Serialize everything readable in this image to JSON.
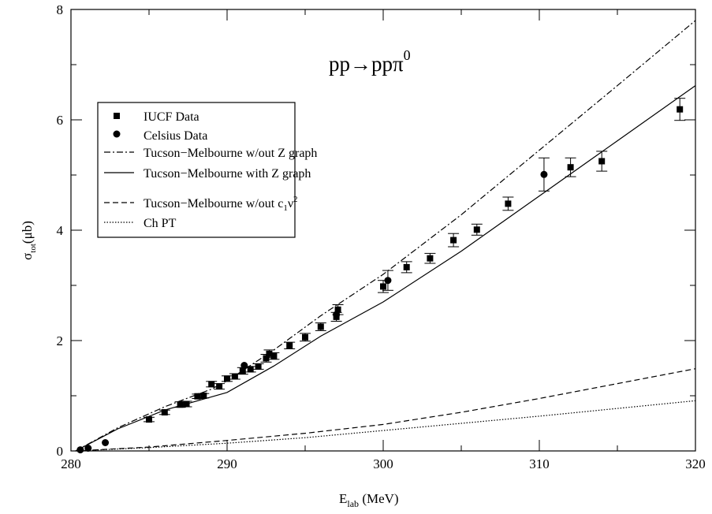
{
  "chart_data": {
    "type": "scatter",
    "title": "pp→ppπ",
    "title_superscript": "0",
    "xlabel_main": "E",
    "xlabel_sub": "lab",
    "xlabel_rest": " (MeV)",
    "ylabel_main": "σ",
    "ylabel_sub": "tot",
    "ylabel_rest": "(μb)",
    "xlim": [
      280,
      320
    ],
    "ylim": [
      0,
      8
    ],
    "x_ticks": [
      "280",
      "290",
      "300",
      "310",
      "320"
    ],
    "y_ticks": [
      "0",
      "2",
      "4",
      "6",
      "8"
    ],
    "grid": false,
    "legend_position": "upper-left",
    "legend": [
      {
        "label": "IUCF Data",
        "marker": "square"
      },
      {
        "label": "Celsius Data",
        "marker": "circle"
      },
      {
        "label": "Tucson−Melbourne w/out Z graph",
        "line": "dash-dot"
      },
      {
        "label": "Tucson−Melbourne with Z graph",
        "line": "solid"
      },
      {
        "label": "Tucson−Melbourne w/out c",
        "label_sub": "1",
        "label_mid": "ν",
        "label_sup": "2",
        "line": "dashed"
      },
      {
        "label": "Ch PT",
        "line": "dotted"
      }
    ],
    "series": [
      {
        "name": "IUCF Data",
        "kind": "points",
        "marker": "square",
        "points": [
          {
            "x": 285.0,
            "y": 0.57,
            "err": 0.04
          },
          {
            "x": 286.0,
            "y": 0.7,
            "err": 0.04
          },
          {
            "x": 287.0,
            "y": 0.84,
            "err": 0.05
          },
          {
            "x": 287.4,
            "y": 0.85,
            "err": 0.05
          },
          {
            "x": 288.1,
            "y": 0.99,
            "err": 0.04
          },
          {
            "x": 288.5,
            "y": 1.0,
            "err": 0.04
          },
          {
            "x": 289.0,
            "y": 1.21,
            "err": 0.05
          },
          {
            "x": 289.5,
            "y": 1.17,
            "err": 0.05
          },
          {
            "x": 290.0,
            "y": 1.31,
            "err": 0.05
          },
          {
            "x": 290.5,
            "y": 1.35,
            "err": 0.05
          },
          {
            "x": 291.0,
            "y": 1.45,
            "err": 0.06
          },
          {
            "x": 291.5,
            "y": 1.48,
            "err": 0.05
          },
          {
            "x": 292.0,
            "y": 1.53,
            "err": 0.05
          },
          {
            "x": 292.5,
            "y": 1.68,
            "err": 0.07
          },
          {
            "x": 292.7,
            "y": 1.76,
            "err": 0.07
          },
          {
            "x": 293.0,
            "y": 1.72,
            "err": 0.06
          },
          {
            "x": 294.0,
            "y": 1.91,
            "err": 0.06
          },
          {
            "x": 295.0,
            "y": 2.06,
            "err": 0.07
          },
          {
            "x": 296.0,
            "y": 2.25,
            "err": 0.07
          },
          {
            "x": 297.0,
            "y": 2.43,
            "err": 0.08
          },
          {
            "x": 297.1,
            "y": 2.56,
            "err": 0.09
          },
          {
            "x": 300.0,
            "y": 2.98,
            "err": 0.11
          },
          {
            "x": 301.5,
            "y": 3.33,
            "err": 0.1
          },
          {
            "x": 303.0,
            "y": 3.49,
            "err": 0.09
          },
          {
            "x": 304.5,
            "y": 3.82,
            "err": 0.12
          },
          {
            "x": 306.0,
            "y": 4.01,
            "err": 0.1
          },
          {
            "x": 308.0,
            "y": 4.48,
            "err": 0.12
          },
          {
            "x": 312.0,
            "y": 5.14,
            "err": 0.17
          },
          {
            "x": 314.0,
            "y": 5.25,
            "err": 0.18
          },
          {
            "x": 319.0,
            "y": 6.19,
            "err": 0.2
          }
        ]
      },
      {
        "name": "Celsius Data",
        "kind": "points",
        "marker": "circle",
        "points": [
          {
            "x": 280.6,
            "y": 0.02,
            "err": 0.0
          },
          {
            "x": 281.1,
            "y": 0.05,
            "err": 0.0
          },
          {
            "x": 282.2,
            "y": 0.15,
            "err": 0.0
          },
          {
            "x": 291.1,
            "y": 1.55,
            "err": 0.0
          },
          {
            "x": 297.0,
            "y": 2.47,
            "err": 0.0
          },
          {
            "x": 300.3,
            "y": 3.09,
            "err": 0.18
          },
          {
            "x": 310.3,
            "y": 5.01,
            "err": 0.3
          }
        ]
      },
      {
        "name": "Tucson−Melbourne w/out Z graph",
        "kind": "line",
        "style": "dash-dot",
        "x": [
          280.3,
          283,
          286,
          289,
          290,
          293,
          296,
          300,
          305,
          310,
          315,
          320
        ],
        "y": [
          0.0,
          0.42,
          0.8,
          1.12,
          1.27,
          1.83,
          2.45,
          3.2,
          4.28,
          5.45,
          6.62,
          7.8
        ]
      },
      {
        "name": "Tucson−Melbourne with Z graph",
        "kind": "line",
        "style": "solid",
        "x": [
          280.3,
          283,
          286,
          289,
          290,
          293,
          296,
          300,
          305,
          310,
          315,
          320
        ],
        "y": [
          0.0,
          0.4,
          0.74,
          0.98,
          1.06,
          1.54,
          2.08,
          2.7,
          3.62,
          4.62,
          5.62,
          6.62
        ]
      },
      {
        "name": "Tucson−Melbourne w/out c1ν2",
        "kind": "line",
        "style": "dashed",
        "x": [
          280.3,
          285,
          290,
          295,
          300,
          305,
          310,
          315,
          320
        ],
        "y": [
          0.0,
          0.07,
          0.19,
          0.32,
          0.48,
          0.7,
          0.95,
          1.22,
          1.49
        ]
      },
      {
        "name": "Ch PT",
        "kind": "line",
        "style": "dotted",
        "x": [
          280.3,
          285,
          290,
          295,
          300,
          305,
          310,
          315,
          320
        ],
        "y": [
          0.0,
          0.06,
          0.14,
          0.24,
          0.37,
          0.5,
          0.63,
          0.77,
          0.91
        ]
      }
    ]
  }
}
